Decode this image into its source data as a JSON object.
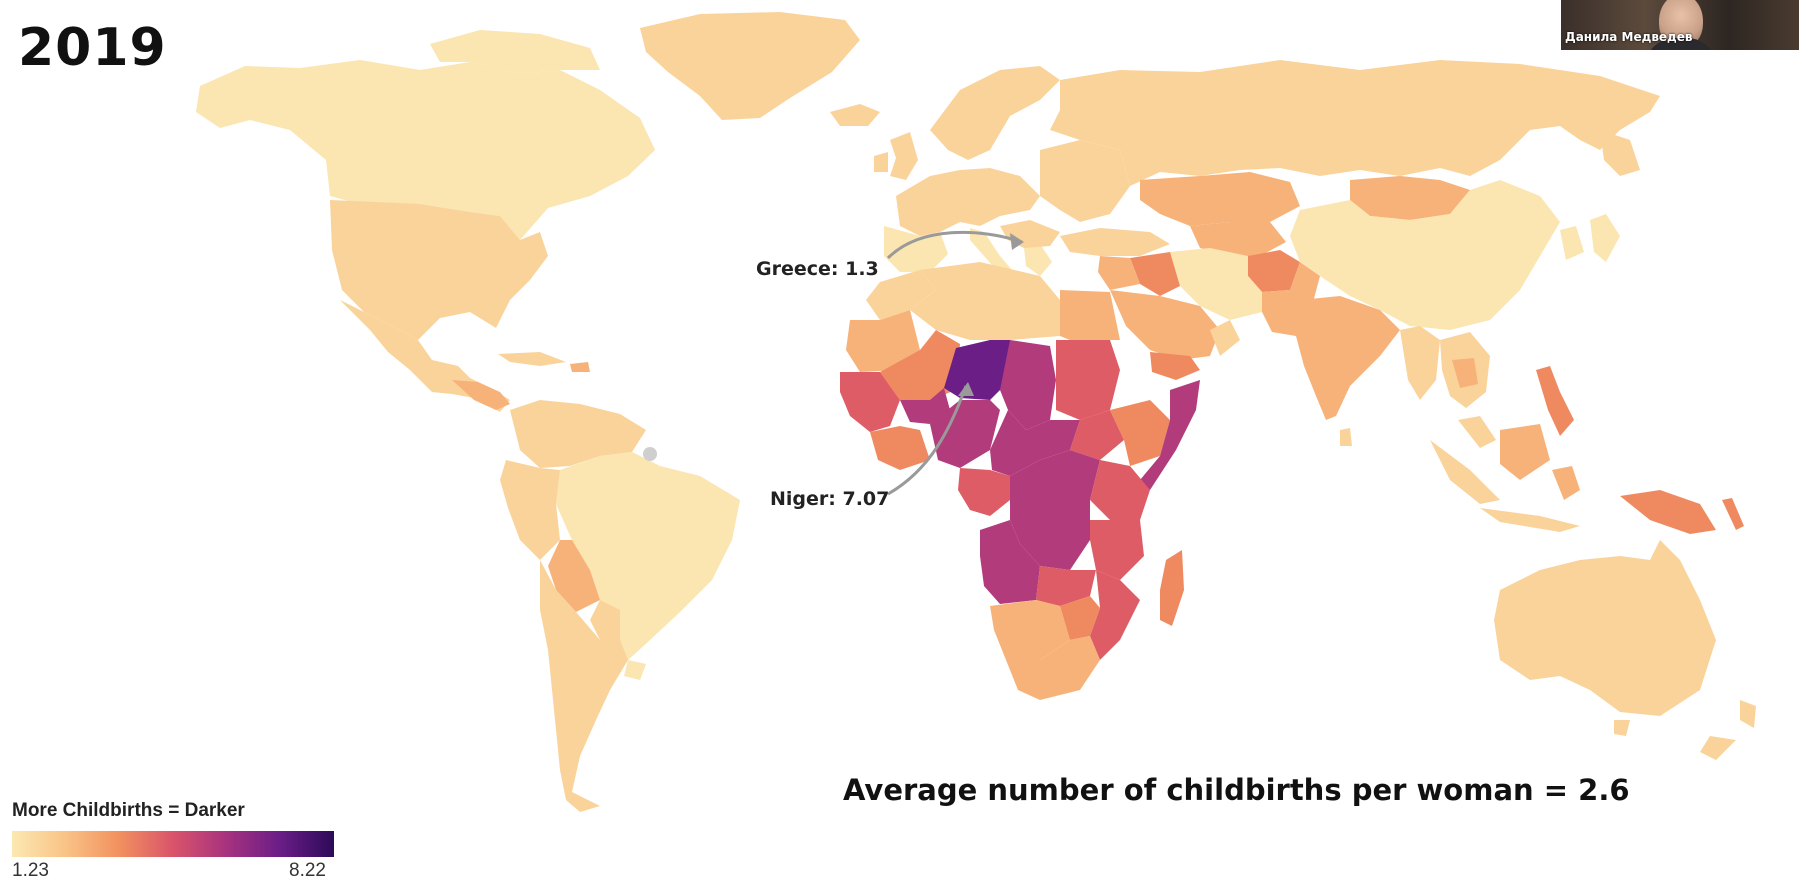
{
  "year": "2019",
  "webcam": {
    "participant_name": "Данила Медведев"
  },
  "annotations": {
    "greece": "Greece: 1.3",
    "niger": "Niger: 7.07"
  },
  "average_text": "Average number of childbirths per woman = 2.6",
  "legend": {
    "title": "More Childbirths = Darker",
    "min": "1.23",
    "max": "8.22",
    "colors": [
      "#fce8b2",
      "#f9c386",
      "#f2905f",
      "#d9546a",
      "#a7327f",
      "#6a1d87",
      "#2c0a58"
    ]
  },
  "colors": {
    "very_low": "#fbe5b0",
    "low": "#fad39a",
    "mid_low": "#f7b27a",
    "mid": "#ef8a60",
    "mid_high": "#dd5c65",
    "high": "#b23b7c",
    "very_high": "#6b1f86"
  }
}
